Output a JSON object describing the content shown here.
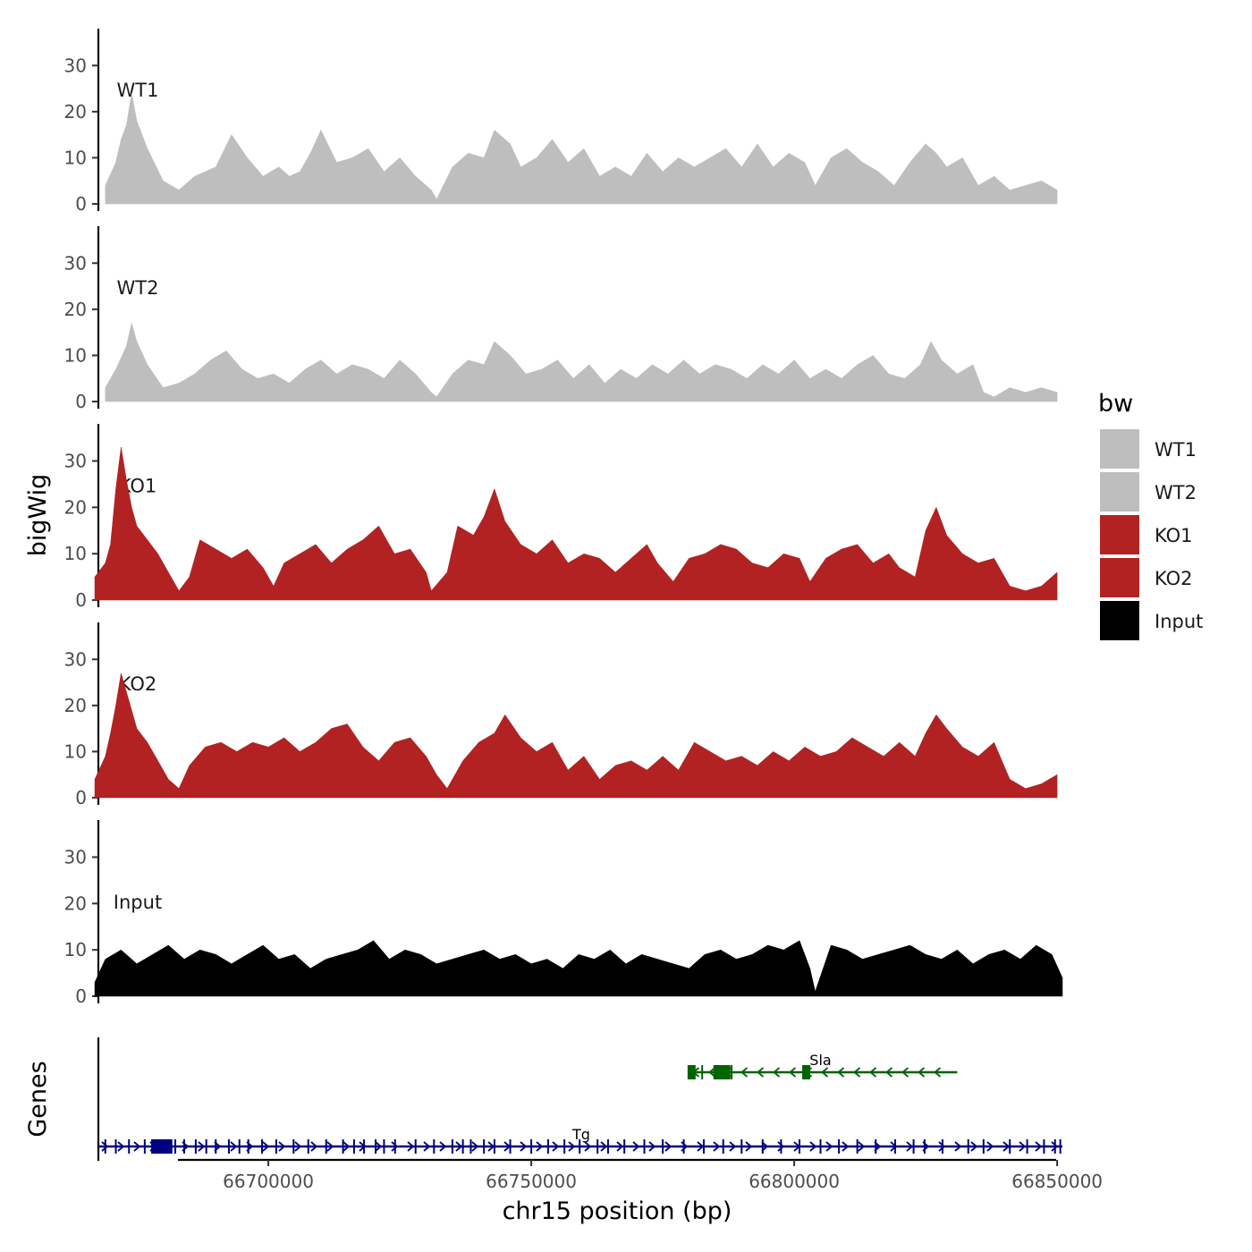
{
  "chart_data": {
    "type": "area",
    "x_range": [
      66667000,
      66851000
    ],
    "x_ticks": [
      66700000,
      66750000,
      66800000,
      66850000
    ],
    "x_tick_labels": [
      "66700000",
      "66750000",
      "66800000",
      "66850000"
    ],
    "xlabel": "chr15 position (bp)",
    "ylabel": "bigWig",
    "genes_ylabel": "Genes",
    "ylim": [
      0,
      38
    ],
    "y_ticks": [
      0,
      10,
      20,
      30
    ],
    "y_tick_labels": [
      "0",
      "10",
      "20",
      "30"
    ],
    "legend": {
      "title": "bw",
      "position": "right",
      "entries": [
        {
          "label": "WT1",
          "color": "#bebebe"
        },
        {
          "label": "WT2",
          "color": "#bebebe"
        },
        {
          "label": "KO1",
          "color": "#b22222"
        },
        {
          "label": "KO2",
          "color": "#b22222"
        },
        {
          "label": "Input",
          "color": "#000000"
        }
      ]
    },
    "series": [
      {
        "name": "WT1",
        "color": "#bebebe",
        "x": [
          66669000,
          66671000,
          66672000,
          66673000,
          66674000,
          66675000,
          66677000,
          66680000,
          66683000,
          66686000,
          66690000,
          66693000,
          66696000,
          66699000,
          66702000,
          66704000,
          66706000,
          66708000,
          66710000,
          66713000,
          66716000,
          66719000,
          66722000,
          66725000,
          66728000,
          66731000,
          66732000,
          66735000,
          66738000,
          66741000,
          66743000,
          66746000,
          66748000,
          66751000,
          66754000,
          66757000,
          66760000,
          66763000,
          66766000,
          66769000,
          66772000,
          66775000,
          66778000,
          66781000,
          66784000,
          66787000,
          66790000,
          66793000,
          66796000,
          66799000,
          66802000,
          66804000,
          66807000,
          66810000,
          66813000,
          66816000,
          66819000,
          66822000,
          66825000,
          66827000,
          66829000,
          66832000,
          66835000,
          66838000,
          66841000,
          66844000,
          66847000,
          66850000
        ],
        "values": [
          4,
          9,
          14,
          17,
          24,
          18,
          12,
          5,
          3,
          6,
          8,
          15,
          10,
          6,
          8,
          6,
          7,
          11,
          16,
          9,
          10,
          12,
          7,
          10,
          6,
          3,
          1,
          8,
          11,
          10,
          16,
          13,
          8,
          10,
          14,
          9,
          12,
          6,
          8,
          6,
          11,
          7,
          10,
          8,
          10,
          12,
          8,
          13,
          8,
          11,
          9,
          4,
          10,
          12,
          9,
          7,
          4,
          9,
          13,
          11,
          8,
          10,
          4,
          6,
          3,
          4,
          5,
          3
        ]
      },
      {
        "name": "WT2",
        "color": "#bebebe",
        "x": [
          66669000,
          66671000,
          66673000,
          66674000,
          66675000,
          66677000,
          66680000,
          66683000,
          66686000,
          66689000,
          66692000,
          66695000,
          66698000,
          66701000,
          66704000,
          66707000,
          66710000,
          66713000,
          66716000,
          66719000,
          66722000,
          66725000,
          66728000,
          66731000,
          66732000,
          66735000,
          66738000,
          66741000,
          66743000,
          66746000,
          66749000,
          66752000,
          66755000,
          66758000,
          66761000,
          66764000,
          66767000,
          66770000,
          66773000,
          66776000,
          66779000,
          66782000,
          66785000,
          66788000,
          66791000,
          66794000,
          66797000,
          66800000,
          66803000,
          66806000,
          66809000,
          66812000,
          66815000,
          66818000,
          66821000,
          66824000,
          66826000,
          66828000,
          66831000,
          66834000,
          66836000,
          66838000,
          66841000,
          66844000,
          66847000,
          66850000
        ],
        "values": [
          3,
          7,
          12,
          17,
          13,
          8,
          3,
          4,
          6,
          9,
          11,
          7,
          5,
          6,
          4,
          7,
          9,
          6,
          8,
          7,
          5,
          9,
          6,
          2,
          1,
          6,
          9,
          8,
          13,
          10,
          6,
          7,
          9,
          5,
          8,
          4,
          7,
          5,
          8,
          6,
          9,
          6,
          8,
          7,
          5,
          8,
          6,
          9,
          5,
          7,
          5,
          8,
          10,
          6,
          5,
          8,
          13,
          9,
          6,
          8,
          2,
          1,
          3,
          2,
          3,
          2
        ]
      },
      {
        "name": "KO1",
        "color": "#b22222",
        "x": [
          66667000,
          66669000,
          66670000,
          66671000,
          66672000,
          66673000,
          66674000,
          66675000,
          66677000,
          66679000,
          66681000,
          66683000,
          66685000,
          66687000,
          66690000,
          66693000,
          66696000,
          66699000,
          66701000,
          66703000,
          66706000,
          66709000,
          66712000,
          66715000,
          66718000,
          66721000,
          66724000,
          66727000,
          66730000,
          66731000,
          66734000,
          66736000,
          66739000,
          66741000,
          66743000,
          66745000,
          66748000,
          66751000,
          66754000,
          66757000,
          66760000,
          66763000,
          66766000,
          66769000,
          66772000,
          66774000,
          66777000,
          66780000,
          66783000,
          66786000,
          66789000,
          66792000,
          66795000,
          66798000,
          66801000,
          66803000,
          66806000,
          66809000,
          66812000,
          66815000,
          66818000,
          66820000,
          66823000,
          66825000,
          66827000,
          66829000,
          66832000,
          66835000,
          66838000,
          66841000,
          66844000,
          66847000,
          66850000
        ],
        "values": [
          5,
          8,
          12,
          24,
          33,
          26,
          20,
          16,
          13,
          10,
          6,
          2,
          5,
          13,
          11,
          9,
          11,
          7,
          3,
          8,
          10,
          12,
          8,
          11,
          13,
          16,
          10,
          11,
          6,
          2,
          6,
          16,
          14,
          18,
          24,
          17,
          12,
          10,
          13,
          8,
          10,
          9,
          6,
          9,
          12,
          8,
          4,
          9,
          10,
          12,
          11,
          8,
          7,
          10,
          9,
          4,
          9,
          11,
          12,
          8,
          10,
          7,
          5,
          15,
          20,
          14,
          10,
          8,
          9,
          3,
          2,
          3,
          6
        ]
      },
      {
        "name": "KO2",
        "color": "#b22222",
        "x": [
          66667000,
          66669000,
          66670000,
          66671000,
          66672000,
          66673000,
          66674000,
          66675000,
          66677000,
          66679000,
          66681000,
          66683000,
          66685000,
          66688000,
          66691000,
          66694000,
          66697000,
          66700000,
          66703000,
          66706000,
          66709000,
          66712000,
          66715000,
          66718000,
          66721000,
          66724000,
          66727000,
          66730000,
          66732000,
          66734000,
          66737000,
          66740000,
          66743000,
          66745000,
          66748000,
          66751000,
          66754000,
          66757000,
          66760000,
          66763000,
          66766000,
          66769000,
          66772000,
          66775000,
          66778000,
          66781000,
          66784000,
          66787000,
          66790000,
          66793000,
          66796000,
          66799000,
          66802000,
          66805000,
          66808000,
          66811000,
          66814000,
          66817000,
          66820000,
          66823000,
          66825000,
          66827000,
          66829000,
          66832000,
          66835000,
          66838000,
          66841000,
          66844000,
          66847000,
          66850000
        ],
        "values": [
          4,
          9,
          14,
          20,
          27,
          23,
          19,
          15,
          12,
          8,
          4,
          2,
          7,
          11,
          12,
          10,
          12,
          11,
          13,
          10,
          12,
          15,
          16,
          11,
          8,
          12,
          13,
          9,
          5,
          2,
          8,
          12,
          14,
          18,
          13,
          10,
          12,
          6,
          9,
          4,
          7,
          8,
          6,
          9,
          6,
          12,
          10,
          8,
          9,
          7,
          10,
          8,
          11,
          9,
          10,
          13,
          11,
          9,
          12,
          9,
          14,
          18,
          15,
          11,
          9,
          12,
          4,
          2,
          3,
          5
        ]
      },
      {
        "name": "Input",
        "color": "#000000",
        "x": [
          66667000,
          66669000,
          66672000,
          66675000,
          66678000,
          66681000,
          66684000,
          66687000,
          66690000,
          66693000,
          66696000,
          66699000,
          66702000,
          66705000,
          66708000,
          66711000,
          66714000,
          66717000,
          66720000,
          66723000,
          66726000,
          66729000,
          66732000,
          66735000,
          66738000,
          66741000,
          66744000,
          66747000,
          66750000,
          66753000,
          66756000,
          66759000,
          66762000,
          66765000,
          66768000,
          66771000,
          66774000,
          66777000,
          66780000,
          66783000,
          66786000,
          66789000,
          66792000,
          66795000,
          66798000,
          66801000,
          66803000,
          66804000,
          66807000,
          66810000,
          66813000,
          66816000,
          66819000,
          66822000,
          66825000,
          66828000,
          66831000,
          66834000,
          66837000,
          66840000,
          66843000,
          66846000,
          66849000,
          66851000
        ],
        "values": [
          3,
          8,
          10,
          7,
          9,
          11,
          8,
          10,
          9,
          7,
          9,
          11,
          8,
          9,
          6,
          8,
          9,
          10,
          12,
          8,
          10,
          9,
          7,
          8,
          9,
          10,
          8,
          9,
          7,
          8,
          6,
          9,
          8,
          10,
          7,
          9,
          8,
          7,
          6,
          9,
          10,
          8,
          9,
          11,
          10,
          12,
          6,
          1,
          11,
          10,
          8,
          9,
          10,
          11,
          9,
          8,
          10,
          7,
          9,
          10,
          8,
          11,
          9,
          4
        ]
      }
    ],
    "genes": [
      {
        "name": "Sla",
        "color": "#006400",
        "start": 66780000,
        "end": 66831000,
        "strand": "-",
        "exons": [
          66780300,
          66782500,
          66784800,
          66786000,
          66786700,
          66787300,
          66788100,
          66802100
        ],
        "big_exons": [
          66780400,
          66785600,
          66786300,
          66787000,
          66802200
        ],
        "label_pos": 66805000,
        "track": 1
      },
      {
        "name": "Tg",
        "color": "#000080",
        "start": 66667500,
        "end": 66851000,
        "strand": "+",
        "exons": [
          66669000,
          66671000,
          66673500,
          66676500,
          66678000,
          66679800,
          66681300,
          66682300,
          66684000,
          66686200,
          66688200,
          66690000,
          66692500,
          66694500,
          66696200,
          66698800,
          66701500,
          66704800,
          66707600,
          66711000,
          66714200,
          66716300,
          66718200,
          66720400,
          66722000,
          66724100,
          66728000,
          66731500,
          66735000,
          66737000,
          66738500,
          66741000,
          66743000,
          66746000,
          66750000,
          66753200,
          66756300,
          66759200,
          66762600,
          66764600,
          66767700,
          66771500,
          66775000,
          66779000,
          66782800,
          66786500,
          66790000,
          66794000,
          66797500,
          66801000,
          66805000,
          66808500,
          66812000,
          66815500,
          66819200,
          66822700,
          66824800,
          66828200,
          66833100,
          66836000,
          66841000,
          66844300,
          66847500,
          66849600,
          66850600
        ],
        "big_exons": [
          66678400,
          66679500,
          66680900
        ],
        "label_pos": 66759500,
        "track": 2
      }
    ]
  }
}
